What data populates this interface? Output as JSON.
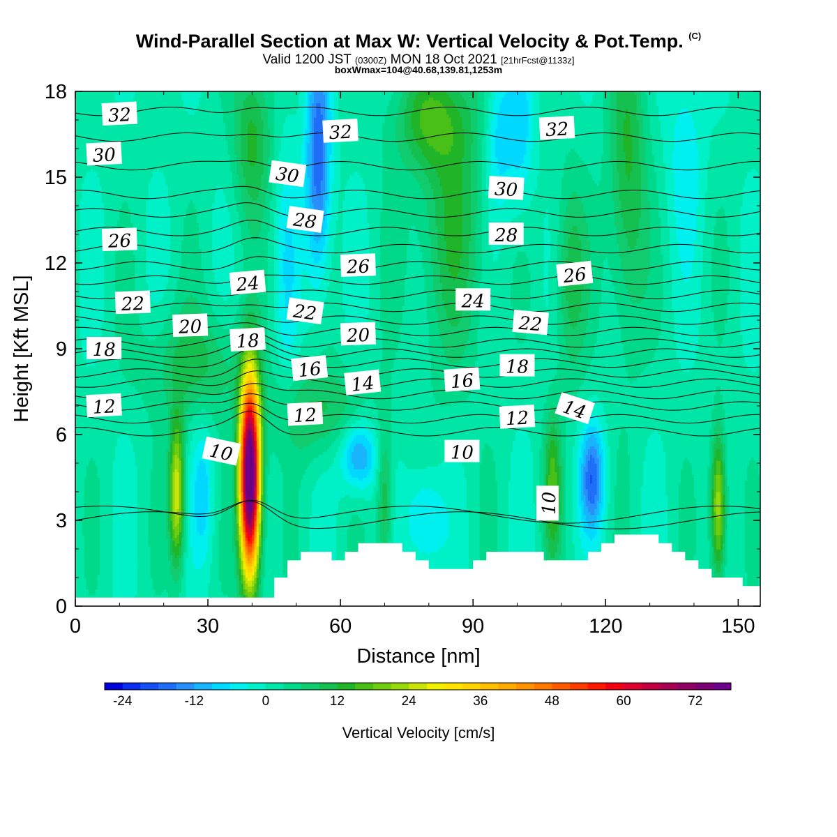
{
  "title": {
    "line1": "Wind-Parallel Section at Max W: Vertical Velocity & Pot.Temp.",
    "line1_mark": "(C)",
    "line2_a": "Valid 1200 JST",
    "line2_b": "(0300Z)",
    "line2_c": "MON 18 Oct 2021",
    "line2_d": "[21hrFcst@1133z]",
    "line3": "boxWmax=104@40.68,139.81,1253m"
  },
  "chart_data": {
    "type": "heatmap",
    "xlabel": "Distance [nm]",
    "ylabel": "Height [Kft MSL]",
    "xlim": [
      0,
      155
    ],
    "ylim": [
      0,
      18
    ],
    "xticks": [
      0,
      30,
      60,
      90,
      120,
      150
    ],
    "yticks": [
      0,
      3,
      6,
      9,
      12,
      15,
      18
    ],
    "colorbar": {
      "title": "Vertical Velocity [cm/s]",
      "tick_values": [
        -24,
        -12,
        0,
        12,
        24,
        36,
        48,
        60,
        72
      ],
      "tick_labels": [
        "-24",
        "-12",
        "0",
        "12",
        "24",
        "36",
        "48",
        "60",
        "72"
      ],
      "levels": [
        -27,
        -24,
        -21,
        -18,
        -15,
        -12,
        -9,
        -6,
        -3,
        0,
        3,
        6,
        9,
        12,
        15,
        18,
        21,
        24,
        27,
        30,
        33,
        36,
        39,
        42,
        45,
        48,
        51,
        54,
        57,
        60,
        63,
        66,
        69,
        72,
        75,
        78
      ],
      "colors": [
        "#0000d8",
        "#0a2ef0",
        "#1450f5",
        "#1e6ef8",
        "#2890fa",
        "#18b4fc",
        "#00d8ff",
        "#00f0f0",
        "#00f0c8",
        "#00e6a6",
        "#00d88a",
        "#10cc6e",
        "#14c050",
        "#20b428",
        "#48c018",
        "#70cc10",
        "#98d80c",
        "#c8e408",
        "#f0f000",
        "#ffe400",
        "#ffd200",
        "#ffbe00",
        "#ffaa00",
        "#ff9200",
        "#ff7800",
        "#ff5a00",
        "#ff3c00",
        "#ff1800",
        "#f00010",
        "#dc0030",
        "#c00040",
        "#a80050",
        "#900060",
        "#7c0070",
        "#6c0088"
      ]
    },
    "background_w": 1,
    "updraft_cores": [
      {
        "x": 39.5,
        "y": 4.5,
        "sx": 1.6,
        "sy": 2.4,
        "w": 88
      },
      {
        "x": 23,
        "y": 4.0,
        "sx": 1.2,
        "sy": 1.8,
        "w": 26
      },
      {
        "x": 145.5,
        "y": 3.5,
        "sx": 1.2,
        "sy": 1.8,
        "w": 24
      },
      {
        "x": 108,
        "y": 4.2,
        "sx": 1.4,
        "sy": 1.8,
        "w": 14
      },
      {
        "x": 70,
        "y": 3.8,
        "sx": 1.3,
        "sy": 1.8,
        "w": 12
      },
      {
        "x": 112,
        "y": 11.5,
        "sx": 2.5,
        "sy": 2.5,
        "w": 10
      },
      {
        "x": 85,
        "y": 14.0,
        "sx": 6,
        "sy": 4,
        "w": 10
      },
      {
        "x": 40,
        "y": 16.5,
        "sx": 3,
        "sy": 2,
        "w": 12
      },
      {
        "x": 125,
        "y": 15.0,
        "sx": 3,
        "sy": 4,
        "w": 12
      },
      {
        "x": 80,
        "y": 17.0,
        "sx": 6,
        "sy": 1.2,
        "w": 10
      },
      {
        "x": 27,
        "y": 8.5,
        "sx": 8,
        "sy": 1.4,
        "w": 9
      },
      {
        "x": 55,
        "y": 6.8,
        "sx": 8,
        "sy": 1.2,
        "w": 9
      }
    ],
    "downdraft_cores": [
      {
        "x": 55,
        "y": 15.5,
        "sx": 2.0,
        "sy": 3.0,
        "w": -19
      },
      {
        "x": 64,
        "y": 5.3,
        "sx": 3.0,
        "sy": 0.9,
        "w": -16
      },
      {
        "x": 117,
        "y": 4.5,
        "sx": 2.0,
        "sy": 1.3,
        "w": -17
      },
      {
        "x": 96,
        "y": 16.5,
        "sx": 2.5,
        "sy": 2.0,
        "w": -10
      },
      {
        "x": 79,
        "y": 3.0,
        "sx": 3.0,
        "sy": 1.3,
        "w": -10
      },
      {
        "x": 29,
        "y": 4.0,
        "sx": 1.8,
        "sy": 1.8,
        "w": -8
      },
      {
        "x": 101,
        "y": 16.5,
        "sx": 2.0,
        "sy": 2.0,
        "w": -8
      },
      {
        "x": 138,
        "y": 16.0,
        "sx": 3.0,
        "sy": 2.5,
        "w": -6
      },
      {
        "x": 48,
        "y": 12.0,
        "sx": 2.0,
        "sy": 4.0,
        "w": -5
      }
    ],
    "terrain": {
      "x": [
        0,
        45,
        45,
        48,
        48,
        51,
        51,
        58,
        58,
        61,
        61,
        64,
        64,
        67,
        67,
        74,
        74,
        77,
        77,
        80,
        80,
        90,
        90,
        93,
        93,
        96,
        96,
        106,
        106,
        109,
        109,
        112,
        112,
        116,
        116,
        119,
        119,
        122,
        122,
        125,
        125,
        132,
        132,
        135,
        135,
        138,
        138,
        141,
        141,
        144,
        144,
        151,
        151,
        155
      ],
      "height": [
        0.3,
        0.3,
        1.0,
        1.0,
        1.6,
        1.6,
        1.9,
        1.9,
        1.6,
        1.6,
        1.9,
        1.9,
        2.2,
        2.2,
        2.2,
        2.2,
        1.9,
        1.9,
        1.6,
        1.6,
        1.3,
        1.3,
        1.6,
        1.6,
        1.9,
        1.9,
        1.9,
        1.9,
        1.6,
        1.6,
        1.6,
        1.6,
        1.6,
        1.6,
        1.9,
        1.9,
        2.2,
        2.2,
        2.5,
        2.5,
        2.5,
        2.5,
        2.2,
        2.2,
        1.9,
        1.9,
        1.6,
        1.6,
        1.3,
        1.3,
        1.0,
        1.0,
        0.7,
        0.7
      ]
    },
    "theta_contours": {
      "interval": 1,
      "values": [
        10,
        11,
        12,
        13,
        14,
        15,
        16,
        17,
        18,
        19,
        20,
        21,
        22,
        23,
        24,
        25,
        26,
        27,
        28,
        29,
        30,
        31,
        32,
        33
      ],
      "base_height": [
        3.0,
        3.2,
        6.1,
        6.55,
        7.0,
        7.4,
        7.8,
        8.15,
        8.5,
        8.85,
        9.2,
        9.6,
        10.0,
        10.45,
        10.9,
        11.4,
        11.9,
        12.5,
        13.1,
        13.75,
        14.4,
        15.4,
        16.4,
        17.3
      ]
    },
    "contour_labels": [
      {
        "text": "32",
        "x": 10,
        "y": 17.2,
        "rot": -3
      },
      {
        "text": "30",
        "x": 6.5,
        "y": 15.8,
        "rot": -3
      },
      {
        "text": "26",
        "x": 10,
        "y": 12.8,
        "rot": -2
      },
      {
        "text": "22",
        "x": 13,
        "y": 10.6,
        "rot": -2
      },
      {
        "text": "20",
        "x": 26,
        "y": 9.8,
        "rot": -2
      },
      {
        "text": "18",
        "x": 6.5,
        "y": 9.0,
        "rot": 0
      },
      {
        "text": "12",
        "x": 6.5,
        "y": 7.0,
        "rot": -3
      },
      {
        "text": "10",
        "x": 33,
        "y": 5.4,
        "rot": 12
      },
      {
        "text": "24",
        "x": 39,
        "y": 11.3,
        "rot": -5
      },
      {
        "text": "18",
        "x": 39,
        "y": 9.3,
        "rot": -3
      },
      {
        "text": "30",
        "x": 48,
        "y": 15.1,
        "rot": 8
      },
      {
        "text": "28",
        "x": 52,
        "y": 13.5,
        "rot": 8
      },
      {
        "text": "22",
        "x": 52,
        "y": 10.3,
        "rot": 8
      },
      {
        "text": "16",
        "x": 53,
        "y": 8.3,
        "rot": -6
      },
      {
        "text": "12",
        "x": 52,
        "y": 6.7,
        "rot": -3
      },
      {
        "text": "32",
        "x": 60,
        "y": 16.6,
        "rot": -3
      },
      {
        "text": "26",
        "x": 64,
        "y": 11.9,
        "rot": -2
      },
      {
        "text": "20",
        "x": 64,
        "y": 9.5,
        "rot": -2
      },
      {
        "text": "14",
        "x": 65,
        "y": 7.8,
        "rot": -6
      },
      {
        "text": "24",
        "x": 90,
        "y": 10.7,
        "rot": 0
      },
      {
        "text": "16",
        "x": 87.5,
        "y": 7.9,
        "rot": -4
      },
      {
        "text": "10",
        "x": 87.5,
        "y": 5.4,
        "rot": 0
      },
      {
        "text": "30",
        "x": 97.5,
        "y": 14.6,
        "rot": 3
      },
      {
        "text": "28",
        "x": 97.5,
        "y": 13.0,
        "rot": 0
      },
      {
        "text": "18",
        "x": 100,
        "y": 8.4,
        "rot": 0
      },
      {
        "text": "12",
        "x": 100,
        "y": 6.6,
        "rot": -3
      },
      {
        "text": "22",
        "x": 103,
        "y": 9.9,
        "rot": 5
      },
      {
        "text": "32",
        "x": 109,
        "y": 16.7,
        "rot": -3
      },
      {
        "text": "26",
        "x": 113,
        "y": 11.6,
        "rot": -6
      },
      {
        "text": "14",
        "x": 113,
        "y": 6.9,
        "rot": 18
      },
      {
        "text": "10",
        "x": 107,
        "y": 3.6,
        "rot": -90
      }
    ]
  }
}
